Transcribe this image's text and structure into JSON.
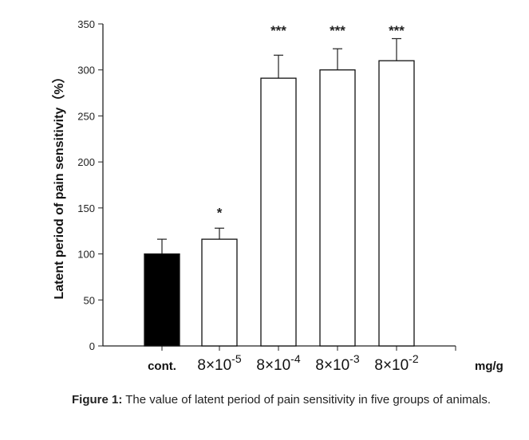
{
  "chart_data": {
    "type": "bar",
    "ylabel": "Latent period of pain sensitivity（%）",
    "xunit": "mg/g",
    "ylim": [
      0,
      350
    ],
    "yticks": [
      0,
      50,
      100,
      150,
      200,
      250,
      300,
      350
    ],
    "categories": [
      {
        "base": "cont.",
        "exp": ""
      },
      {
        "base": "8×10",
        "exp": "-5"
      },
      {
        "base": "8×10",
        "exp": "-4"
      },
      {
        "base": "8×10",
        "exp": "-3"
      },
      {
        "base": "8×10",
        "exp": "-2"
      }
    ],
    "values": [
      100,
      116,
      291,
      300,
      310
    ],
    "error_upper": [
      116,
      128,
      316,
      323,
      334
    ],
    "significance": [
      "",
      "*",
      "***",
      "***",
      "***"
    ],
    "bar_fills": [
      "#000000",
      "#ffffff",
      "#ffffff",
      "#ffffff",
      "#ffffff"
    ],
    "grid": false
  },
  "caption": {
    "label": "Figure 1:",
    "text": " The value of latent period of pain sensitivity in five groups of animals."
  }
}
